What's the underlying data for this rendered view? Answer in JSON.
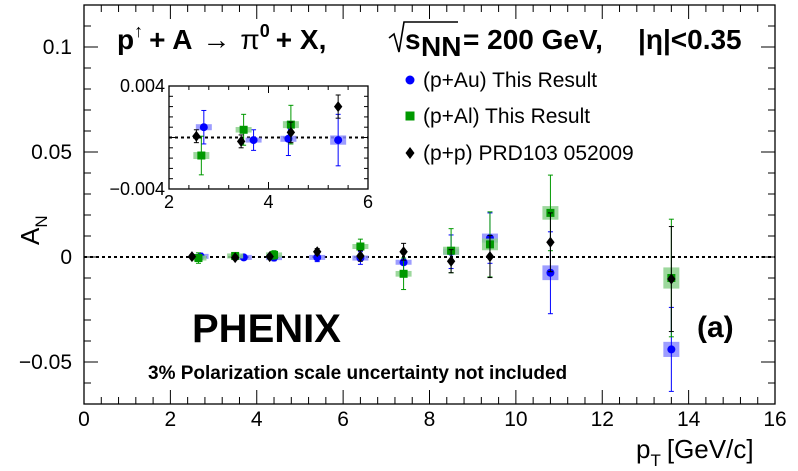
{
  "chart_data": [
    {
      "type": "scatter",
      "title_parts": {
        "p": "p",
        "arrow": "↑",
        "plus_a": "+ A",
        "to": "→",
        "pi": "π",
        "pi_sup": "0",
        "plus_x": "+ X,",
        "sqrt": "√",
        "s": "s",
        "s_sub": "NN",
        "energy": "= 200 GeV,",
        "eta": "|η|<0.35"
      },
      "xlabel": "p",
      "xlabel_sub": "T",
      "xlabel_unit": "[GeV/c]",
      "ylabel": "A",
      "ylabel_sub": "N",
      "xlim": [
        0,
        16
      ],
      "ylim": [
        -0.07,
        0.12
      ],
      "x_tick_labels": [
        "0",
        "2",
        "4",
        "6",
        "8",
        "10",
        "12",
        "14",
        "16"
      ],
      "x_tick_values": [
        0,
        2,
        4,
        6,
        8,
        10,
        12,
        14,
        16
      ],
      "y_tick_labels": [
        "−0.05",
        "0",
        "0.05",
        "0.1"
      ],
      "y_tick_values": [
        -0.05,
        0,
        0.05,
        0.1
      ],
      "reference_line": 0,
      "experiment": "PHENIX",
      "panel_label": "(a)",
      "note": "3% Polarization scale uncertainty not included",
      "legend_position": "top-right",
      "series": [
        {
          "name": "(p+Au) This Result",
          "color": "#0000ff",
          "marker": "circle",
          "points": [
            {
              "x": 2.7,
              "y": 0.0003,
              "err": 0.0015
            },
            {
              "x": 3.7,
              "y": -0.0002,
              "err": 0.0012
            },
            {
              "x": 4.4,
              "y": -0.0003,
              "err": 0.0015
            },
            {
              "x": 5.4,
              "y": -0.0002,
              "err": 0.002
            },
            {
              "x": 6.4,
              "y": -0.0005,
              "err": 0.003
            },
            {
              "x": 7.4,
              "y": -0.0025,
              "err": 0.005
            },
            {
              "x": 8.5,
              "y": 0.0025,
              "err": 0.008
            },
            {
              "x": 9.4,
              "y": 0.009,
              "err": 0.012
            },
            {
              "x": 10.8,
              "y": -0.0075,
              "err": 0.0195
            },
            {
              "x": 13.6,
              "y": -0.044,
              "err": 0.02
            }
          ]
        },
        {
          "name": "(p+Al) This Result",
          "color": "#009900",
          "marker": "square",
          "points": [
            {
              "x": 2.65,
              "y": -0.0005,
              "err": 0.0025
            },
            {
              "x": 3.5,
              "y": 0.0005,
              "err": 0.0015
            },
            {
              "x": 4.4,
              "y": 0.001,
              "err": 0.002
            },
            {
              "x": 6.4,
              "y": 0.005,
              "err": 0.0035
            },
            {
              "x": 7.4,
              "y": -0.008,
              "err": 0.0075
            },
            {
              "x": 8.5,
              "y": 0.003,
              "err": 0.0105
            },
            {
              "x": 9.4,
              "y": 0.006,
              "err": 0.0155
            },
            {
              "x": 10.8,
              "y": 0.021,
              "err": 0.018
            },
            {
              "x": 13.6,
              "y": -0.01,
              "err": 0.028
            }
          ]
        },
        {
          "name": "(p+p) PRD103 052009",
          "color": "#000000",
          "marker": "diamond",
          "points": [
            {
              "x": 2.5,
              "y": 0.0002,
              "err": 0.001
            },
            {
              "x": 3.5,
              "y": -0.0003,
              "err": 0.001
            },
            {
              "x": 4.3,
              "y": 0.0002,
              "err": 0.001
            },
            {
              "x": 5.4,
              "y": 0.0025,
              "err": 0.0015
            },
            {
              "x": 6.4,
              "y": 0.0005,
              "err": 0.0025
            },
            {
              "x": 7.4,
              "y": 0.0025,
              "err": 0.004
            },
            {
              "x": 8.5,
              "y": -0.002,
              "err": 0.0055
            },
            {
              "x": 9.4,
              "y": 0.0002,
              "err": 0.01
            },
            {
              "x": 10.8,
              "y": 0.007,
              "err": 0.014
            },
            {
              "x": 13.6,
              "y": -0.0105,
              "err": 0.025
            }
          ]
        }
      ]
    },
    {
      "type": "scatter",
      "role": "inset",
      "xlim": [
        2,
        6
      ],
      "ylim": [
        -0.004,
        0.004
      ],
      "x_tick_labels": [
        "2",
        "4",
        "6"
      ],
      "x_tick_values": [
        2,
        4,
        6
      ],
      "y_tick_labels": [
        "−0.004",
        "0.004"
      ],
      "y_tick_values": [
        -0.004,
        0.004
      ],
      "reference_line": 0,
      "series": [
        {
          "name": "(p+Au) This Result",
          "color": "#0000ff",
          "marker": "circle",
          "points": [
            {
              "x": 2.7,
              "y": 0.0008,
              "err": 0.0013
            },
            {
              "x": 3.7,
              "y": -0.0002,
              "err": 0.0008
            },
            {
              "x": 4.4,
              "y": -0.0001,
              "err": 0.0013
            },
            {
              "x": 5.4,
              "y": -0.0002,
              "err": 0.002
            }
          ]
        },
        {
          "name": "(p+Al) This Result",
          "color": "#009900",
          "marker": "square",
          "points": [
            {
              "x": 2.65,
              "y": -0.0014,
              "err": 0.0015
            },
            {
              "x": 3.5,
              "y": 0.0006,
              "err": 0.0012
            },
            {
              "x": 4.45,
              "y": 0.001,
              "err": 0.0015
            }
          ]
        },
        {
          "name": "(p+p) PRD103 052009",
          "color": "#000000",
          "marker": "diamond",
          "points": [
            {
              "x": 2.55,
              "y": 0.0001,
              "err": 0.0005
            },
            {
              "x": 3.45,
              "y": -0.0003,
              "err": 0.0005
            },
            {
              "x": 4.45,
              "y": 0.0004,
              "err": 0.0008
            },
            {
              "x": 5.4,
              "y": 0.0024,
              "err": 0.0009
            }
          ]
        }
      ]
    }
  ]
}
